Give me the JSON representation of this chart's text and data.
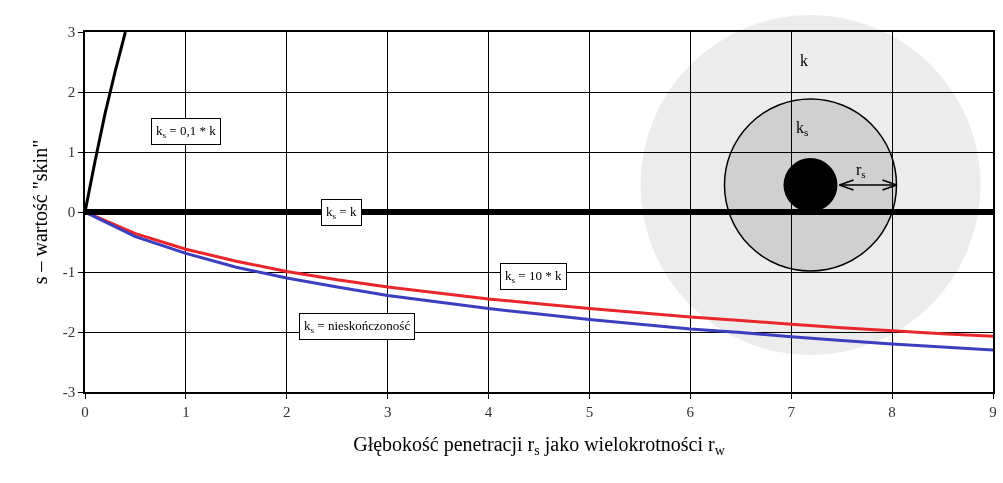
{
  "chart_data": {
    "type": "line",
    "xlabel": "Głębokość penetracji r$_{s}$ jako wielokrotności r$_{w}$",
    "ylabel": "s – wartość \"skin\"",
    "series": [
      {
        "color": "#000000",
        "x": [
          0,
          0.1,
          0.2,
          0.3,
          0.4
        ],
        "values": [
          0,
          0.85,
          1.65,
          2.35,
          3.0
        ]
      },
      {
        "color": "#e8262b",
        "x": [
          0,
          0.5,
          1,
          1.5,
          2,
          2.5,
          3,
          3.5,
          4,
          4.5,
          5,
          5.5,
          6,
          6.5,
          7,
          7.5,
          8,
          8.5,
          9
        ],
        "values": [
          0,
          -0.36,
          -0.62,
          -0.82,
          -0.99,
          -1.13,
          -1.25,
          -1.35,
          -1.45,
          -1.53,
          -1.61,
          -1.68,
          -1.75,
          -1.81,
          -1.87,
          -1.93,
          -1.98,
          -2.03,
          -2.07
        ]
      },
      {
        "color": "#3a3fc0",
        "x": [
          0,
          0.5,
          1,
          1.5,
          2,
          2.5,
          3,
          3.5,
          4,
          4.5,
          5,
          5.5,
          6,
          6.5,
          7,
          7.5,
          8,
          8.5,
          9
        ],
        "values": [
          0,
          -0.41,
          -0.69,
          -0.92,
          -1.1,
          -1.25,
          -1.39,
          -1.5,
          -1.61,
          -1.7,
          -1.79,
          -1.87,
          -1.95,
          -2.01,
          -2.08,
          -2.14,
          -2.2,
          -2.25,
          -2.3
        ]
      }
    ],
    "ref_lines": [
      {
        "axis": "y",
        "value": 0,
        "label": "k$_{s}$ = k",
        "color": "#000000"
      }
    ],
    "annotations": [
      "k$_{s}$ = 0,1 * k",
      "k$_{s}$ = 10 * k",
      "k$_{s}$ = nieskończoność",
      "k",
      "k$_{s}$",
      "r$_{s}$"
    ],
    "xlim": [
      0,
      9
    ],
    "ylim": [
      -3,
      3
    ],
    "xticks": [
      0,
      1,
      2,
      3,
      4,
      5,
      6,
      7,
      8,
      9
    ],
    "yticks": [
      -3,
      -2,
      -1,
      0,
      1,
      2,
      3
    ],
    "grid": true,
    "marker": "none",
    "line_style": "solid"
  }
}
